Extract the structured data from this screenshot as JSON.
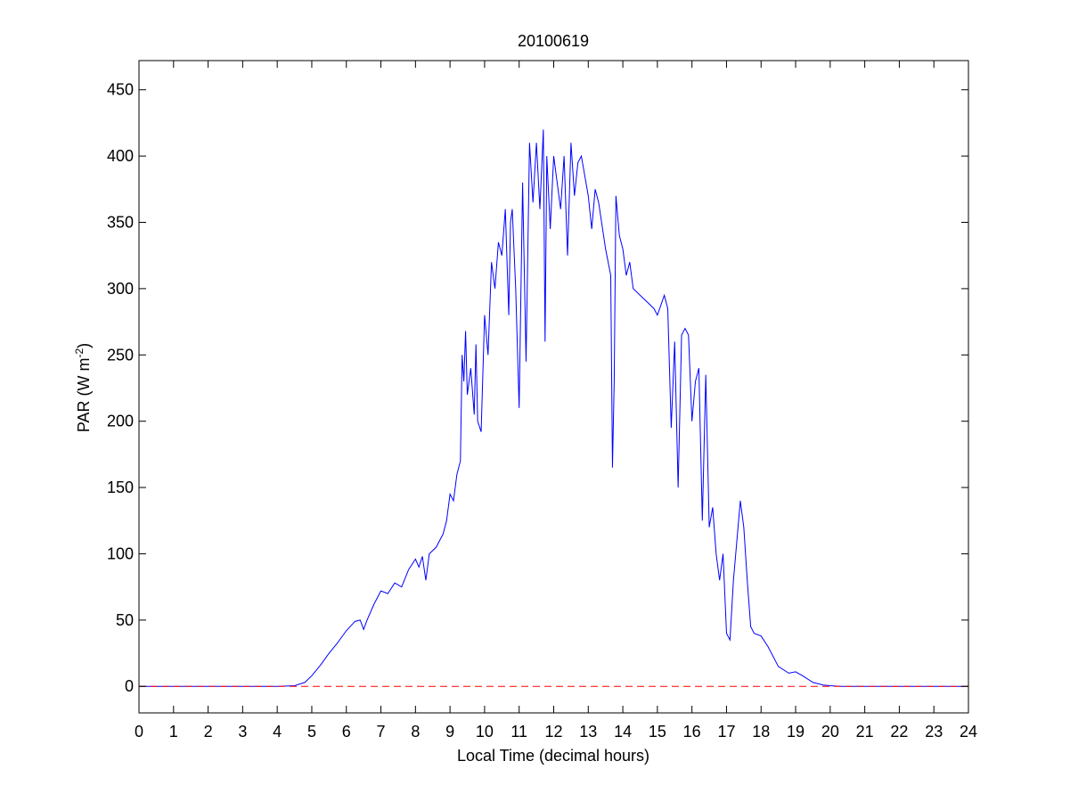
{
  "chart_data": {
    "type": "line",
    "title": "20100619",
    "xlabel": "Local Time (decimal hours)",
    "ylabel": {
      "text": "PAR (W m",
      "superscript": "-2",
      "suffix": ")"
    },
    "xlim": [
      0,
      24
    ],
    "xticks": [
      0,
      1,
      2,
      3,
      4,
      5,
      6,
      7,
      8,
      9,
      10,
      11,
      12,
      13,
      14,
      15,
      16,
      17,
      18,
      19,
      20,
      21,
      22,
      23,
      24
    ],
    "ylim": [
      -20,
      472
    ],
    "yticks": [
      0,
      50,
      100,
      150,
      200,
      250,
      300,
      350,
      400,
      450
    ],
    "series": [
      {
        "color": "#0000ff",
        "dash": false,
        "x": [
          0,
          4,
          4.5,
          4.8,
          5,
          5.25,
          5.5,
          5.75,
          6,
          6.25,
          6.4,
          6.5,
          6.6,
          6.8,
          7,
          7.2,
          7.4,
          7.6,
          7.8,
          8,
          8.1,
          8.2,
          8.3,
          8.4,
          8.6,
          8.8,
          8.9,
          9,
          9.1,
          9.2,
          9.3,
          9.35,
          9.4,
          9.45,
          9.5,
          9.6,
          9.7,
          9.75,
          9.8,
          9.9,
          10,
          10.1,
          10.2,
          10.3,
          10.4,
          10.5,
          10.6,
          10.7,
          10.75,
          10.8,
          10.9,
          11,
          11.1,
          11.2,
          11.3,
          11.4,
          11.5,
          11.6,
          11.7,
          11.75,
          11.8,
          11.9,
          12,
          12.1,
          12.2,
          12.3,
          12.4,
          12.5,
          12.6,
          12.7,
          12.8,
          12.9,
          13,
          13.1,
          13.2,
          13.3,
          13.5,
          13.65,
          13.7,
          13.75,
          13.8,
          13.9,
          14,
          14.1,
          14.2,
          14.3,
          14.5,
          14.7,
          14.9,
          15,
          15.2,
          15.3,
          15.4,
          15.5,
          15.6,
          15.7,
          15.8,
          15.9,
          16,
          16.1,
          16.2,
          16.3,
          16.4,
          16.5,
          16.6,
          16.7,
          16.8,
          16.9,
          17,
          17.1,
          17.2,
          17.4,
          17.5,
          17.6,
          17.7,
          17.8,
          18,
          18.2,
          18.5,
          18.8,
          19,
          19.2,
          19.5,
          19.8,
          20,
          20.3,
          24
        ],
        "values": [
          0,
          0,
          0.5,
          3,
          8,
          16,
          25,
          33,
          42,
          49,
          50,
          43,
          50,
          62,
          72,
          70,
          78,
          75,
          88,
          96,
          90,
          98,
          80,
          100,
          105,
          115,
          125,
          145,
          140,
          160,
          170,
          250,
          230,
          268,
          220,
          240,
          205,
          258,
          200,
          192,
          280,
          250,
          320,
          300,
          335,
          325,
          360,
          280,
          350,
          360,
          300,
          210,
          380,
          245,
          410,
          365,
          410,
          360,
          420,
          260,
          400,
          345,
          400,
          380,
          360,
          400,
          325,
          410,
          370,
          395,
          400,
          385,
          370,
          345,
          375,
          365,
          330,
          310,
          165,
          230,
          370,
          340,
          330,
          310,
          320,
          300,
          295,
          290,
          285,
          280,
          295,
          285,
          195,
          260,
          150,
          265,
          270,
          265,
          200,
          230,
          240,
          125,
          235,
          120,
          135,
          100,
          80,
          100,
          40,
          35,
          80,
          140,
          120,
          80,
          45,
          40,
          38,
          30,
          15,
          10,
          11,
          8,
          3,
          1,
          0.5,
          0,
          0
        ]
      },
      {
        "color": "#ff0000",
        "dash": true,
        "x": [
          0,
          24
        ],
        "values": [
          0,
          0
        ]
      }
    ]
  }
}
